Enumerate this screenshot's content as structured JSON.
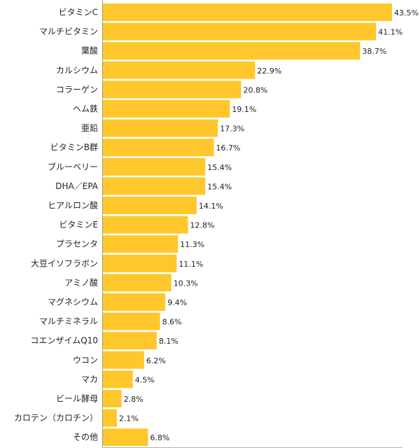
{
  "chart_data": {
    "type": "bar",
    "orientation": "horizontal",
    "categories": [
      "ビタミンC",
      "マルチビタミン",
      "葉酸",
      "カルシウム",
      "コラーゲン",
      "ヘム鉄",
      "亜鉛",
      "ビタミンB群",
      "ブルーベリー",
      "DHA／EPA",
      "ヒアルロン酸",
      "ビタミンE",
      "プラセンタ",
      "大豆イソフラボン",
      "アミノ酸",
      "マグネシウム",
      "マルチミネラル",
      "コエンザイムQ10",
      "ウコン",
      "マカ",
      "ビール酵母",
      "カロテン（カロチン）",
      "その他"
    ],
    "values": [
      43.5,
      41.1,
      38.7,
      22.9,
      20.8,
      19.1,
      17.3,
      16.7,
      15.4,
      15.4,
      14.1,
      12.8,
      11.3,
      11.1,
      10.3,
      9.4,
      8.6,
      8.1,
      6.2,
      4.5,
      2.8,
      2.1,
      6.8
    ],
    "value_labels": [
      "43.5%",
      "41.1%",
      "38.7%",
      "22.9%",
      "20.8%",
      "19.1%",
      "17.3%",
      "16.7%",
      "15.4%",
      "15.4%",
      "14.1%",
      "12.8%",
      "11.3%",
      "11.1%",
      "10.3%",
      "9.4%",
      "8.6%",
      "8.1%",
      "6.2%",
      "4.5%",
      "2.8%",
      "2.1%",
      "6.8%"
    ],
    "xlim": [
      0,
      43.5
    ],
    "grid": false,
    "colors": {
      "bar": "#FFC72C",
      "axis": "#999999",
      "text": "#222222"
    }
  }
}
